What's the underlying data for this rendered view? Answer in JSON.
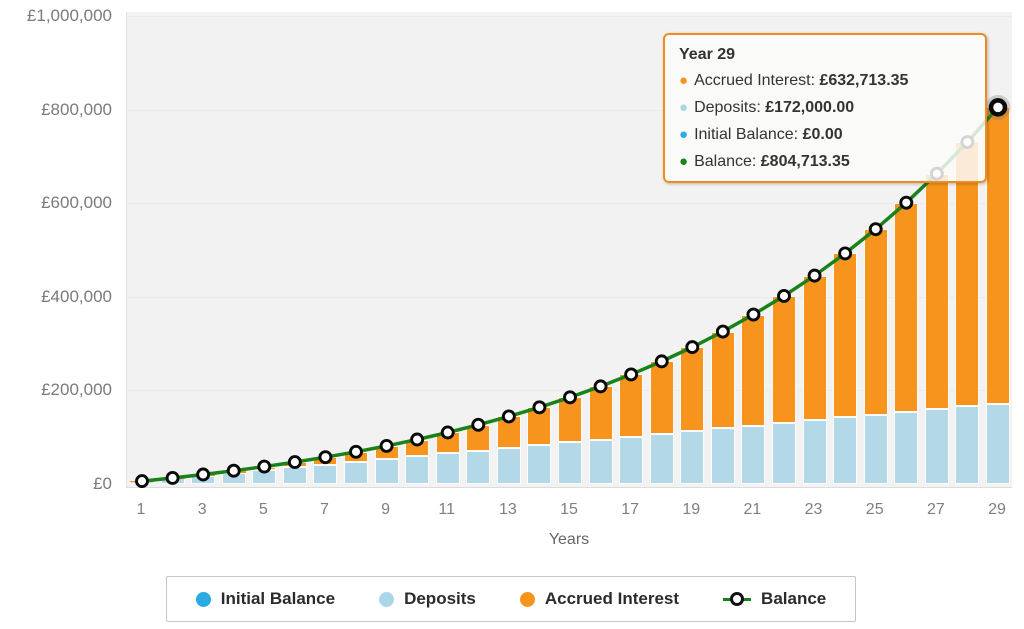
{
  "tooltip": {
    "title": "Year 29",
    "rows": [
      {
        "key": "accrued-interest",
        "label": "Accrued Interest",
        "value": "£632,713.35",
        "color": "#f7941d"
      },
      {
        "key": "deposits",
        "label": "Deposits",
        "value": "£172,000.00",
        "color": "#a9d6e8"
      },
      {
        "key": "initial-balance",
        "label": "Initial Balance",
        "value": "£0.00",
        "color": "#29abe2"
      },
      {
        "key": "balance",
        "label": "Balance",
        "value": "£804,713.35",
        "color": "#1a821a"
      }
    ]
  },
  "legend": {
    "items": [
      {
        "key": "initial-balance",
        "label": "Initial Balance",
        "color": "#29abe2",
        "marker": "dot"
      },
      {
        "key": "deposits",
        "label": "Deposits",
        "color": "#a9d6e8",
        "marker": "dot"
      },
      {
        "key": "accrued-interest",
        "label": "Accrued Interest",
        "color": "#f7941d",
        "marker": "dot"
      },
      {
        "key": "balance",
        "label": "Balance",
        "color": "#1a821a",
        "marker": "line-dot"
      }
    ]
  },
  "axes": {
    "y_ticks": [
      "£1,000,000",
      "£800,000",
      "£600,000",
      "£400,000",
      "£200,000",
      "£0"
    ],
    "y_tick_values": [
      1000000,
      800000,
      600000,
      400000,
      200000,
      0
    ],
    "x_ticks": [
      1,
      3,
      5,
      7,
      9,
      11,
      13,
      15,
      17,
      19,
      21,
      23,
      25,
      27,
      29
    ],
    "x_title": "Years"
  },
  "chart_data": {
    "type": "bar",
    "stacked": true,
    "title": "",
    "xlabel": "Years",
    "ylabel": "",
    "ylim": [
      0,
      1000000
    ],
    "grid": true,
    "legend_position": "bottom",
    "hovered_x": 29,
    "x": [
      1,
      2,
      3,
      4,
      5,
      6,
      7,
      8,
      9,
      10,
      11,
      12,
      13,
      14,
      15,
      16,
      17,
      18,
      19,
      20,
      21,
      22,
      23,
      24,
      25,
      26,
      27,
      28,
      29
    ],
    "series": [
      {
        "name": "Initial Balance",
        "key": "initial-balance",
        "type": "bar",
        "color": "#29abe2",
        "values": [
          0,
          0,
          0,
          0,
          0,
          0,
          0,
          0,
          0,
          0,
          0,
          0,
          0,
          0,
          0,
          0,
          0,
          0,
          0,
          0,
          0,
          0,
          0,
          0,
          0,
          0,
          0,
          0,
          0
        ]
      },
      {
        "name": "Deposits",
        "key": "deposits",
        "type": "bar",
        "color": "#b3d9e9",
        "values": [
          5931.03,
          11862.07,
          17793.1,
          23724.14,
          29655.17,
          35586.21,
          41517.24,
          47448.28,
          53379.31,
          59310.34,
          65241.38,
          71172.41,
          77103.45,
          83034.48,
          88965.52,
          94896.55,
          100827.59,
          106758.62,
          112689.66,
          118620.69,
          124551.72,
          130482.76,
          136413.79,
          142344.83,
          148275.86,
          154206.9,
          160137.93,
          166068.97,
          172000.0
        ]
      },
      {
        "name": "Accrued Interest",
        "key": "accrued-interest",
        "type": "bar",
        "color": "#f7941d",
        "values": [
          248,
          1068,
          2515,
          4645,
          7522,
          11215,
          15800,
          21359,
          27983,
          35771,
          44830,
          55278,
          67244,
          80868,
          96303,
          113720,
          133300,
          155244,
          179771,
          207121,
          237555,
          271358,
          308844,
          350353,
          396258,
          446967,
          502924,
          564617,
          632713.35
        ]
      },
      {
        "name": "Balance",
        "key": "balance",
        "type": "line",
        "color": "#1a821a",
        "marker": "white-circle-black-ring",
        "values": [
          6179,
          12930,
          20308,
          28369,
          37177,
          46801,
          57317,
          68807,
          81362,
          95081,
          110071,
          126450,
          144347,
          163902,
          185269,
          208617,
          234128,
          262003,
          292461,
          325742,
          362107,
          401841,
          445258,
          492698,
          544534,
          601174,
          663062,
          730686,
          804713.35
        ]
      }
    ]
  }
}
